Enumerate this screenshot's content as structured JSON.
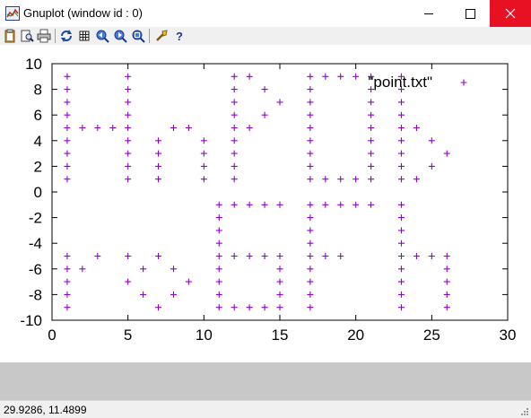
{
  "window": {
    "title": "Gnuplot (window id : 0)",
    "controls": [
      "minimize",
      "maximize",
      "close"
    ]
  },
  "toolbar": {
    "buttons": [
      "copy-clipboard-icon",
      "print-preview-icon",
      "print-icon",
      "replot-icon",
      "toggle-grid-icon",
      "zoom-previous-icon",
      "zoom-next-icon",
      "autoscale-icon",
      "options-icon",
      "help-icon"
    ]
  },
  "status": {
    "coords": "29.9286,  11.4899"
  },
  "colors": {
    "points": "#9400d3",
    "close_button": "#e81123",
    "background": "#ffffff",
    "grey_band": "#c8c8c8"
  },
  "chart_data": {
    "type": "scatter",
    "xlim": [
      0,
      30
    ],
    "ylim": [
      -10,
      10
    ],
    "xticks": [
      "0",
      "5",
      "10",
      "15",
      "20",
      "25",
      "30"
    ],
    "yticks": [
      "10",
      "8",
      "6",
      "4",
      "2",
      "0",
      "-2",
      "-4",
      "-6",
      "-8",
      "-10"
    ],
    "grid": false,
    "legend": "top-right",
    "series": [
      {
        "name": "\"point.txt\"",
        "marker": "+",
        "points": [
          [
            1,
            9
          ],
          [
            1,
            8
          ],
          [
            1,
            7
          ],
          [
            1,
            6
          ],
          [
            1,
            5
          ],
          [
            1,
            4
          ],
          [
            1,
            3
          ],
          [
            1,
            2
          ],
          [
            1,
            1
          ],
          [
            2,
            5
          ],
          [
            3,
            5
          ],
          [
            4,
            5
          ],
          [
            5,
            9
          ],
          [
            5,
            8
          ],
          [
            5,
            7
          ],
          [
            5,
            6
          ],
          [
            5,
            5
          ],
          [
            5,
            4
          ],
          [
            5,
            3
          ],
          [
            5,
            2
          ],
          [
            5,
            1
          ],
          [
            7,
            4
          ],
          [
            7,
            3
          ],
          [
            7,
            2
          ],
          [
            7,
            1
          ],
          [
            8,
            5
          ],
          [
            9,
            5
          ],
          [
            10,
            4
          ],
          [
            10,
            3
          ],
          [
            10,
            2
          ],
          [
            10,
            1
          ],
          [
            12,
            9
          ],
          [
            13,
            9
          ],
          [
            12,
            8
          ],
          [
            14,
            8
          ],
          [
            12,
            7
          ],
          [
            15,
            7
          ],
          [
            12,
            6
          ],
          [
            14,
            6
          ],
          [
            12,
            5
          ],
          [
            13,
            5
          ],
          [
            12,
            4
          ],
          [
            12,
            3
          ],
          [
            12,
            2
          ],
          [
            12,
            1
          ],
          [
            17,
            9
          ],
          [
            18,
            9
          ],
          [
            19,
            9
          ],
          [
            20,
            9
          ],
          [
            21,
            9
          ],
          [
            17,
            8
          ],
          [
            17,
            7
          ],
          [
            17,
            6
          ],
          [
            17,
            5
          ],
          [
            17,
            4
          ],
          [
            17,
            3
          ],
          [
            17,
            2
          ],
          [
            17,
            1
          ],
          [
            18,
            1
          ],
          [
            19,
            1
          ],
          [
            20,
            1
          ],
          [
            21,
            1
          ],
          [
            21,
            8
          ],
          [
            21,
            7
          ],
          [
            21,
            6
          ],
          [
            21,
            5
          ],
          [
            21,
            4
          ],
          [
            21,
            3
          ],
          [
            21,
            2
          ],
          [
            23,
            9
          ],
          [
            23,
            8
          ],
          [
            23,
            7
          ],
          [
            23,
            6
          ],
          [
            23,
            5
          ],
          [
            23,
            4
          ],
          [
            23,
            3
          ],
          [
            23,
            2
          ],
          [
            23,
            1
          ],
          [
            24,
            1
          ],
          [
            24,
            5
          ],
          [
            25,
            4
          ],
          [
            25,
            2
          ],
          [
            26,
            3
          ],
          [
            1,
            -5
          ],
          [
            1,
            -6
          ],
          [
            1,
            -7
          ],
          [
            1,
            -8
          ],
          [
            1,
            -9
          ],
          [
            2,
            -6
          ],
          [
            3,
            -5
          ],
          [
            5,
            -5
          ],
          [
            5,
            -7
          ],
          [
            6,
            -6
          ],
          [
            6,
            -8
          ],
          [
            7,
            -5
          ],
          [
            7,
            -9
          ],
          [
            8,
            -6
          ],
          [
            8,
            -8
          ],
          [
            9,
            -7
          ],
          [
            11,
            -1
          ],
          [
            12,
            -1
          ],
          [
            13,
            -1
          ],
          [
            14,
            -1
          ],
          [
            15,
            -1
          ],
          [
            11,
            -2
          ],
          [
            11,
            -3
          ],
          [
            11,
            -4
          ],
          [
            11,
            -5
          ],
          [
            11,
            -6
          ],
          [
            11,
            -7
          ],
          [
            11,
            -8
          ],
          [
            11,
            -9
          ],
          [
            12,
            -5
          ],
          [
            13,
            -5
          ],
          [
            14,
            -5
          ],
          [
            15,
            -5
          ],
          [
            15,
            -6
          ],
          [
            15,
            -7
          ],
          [
            15,
            -8
          ],
          [
            15,
            -9
          ],
          [
            12,
            -9
          ],
          [
            13,
            -9
          ],
          [
            14,
            -9
          ],
          [
            17,
            -1
          ],
          [
            18,
            -1
          ],
          [
            19,
            -1
          ],
          [
            20,
            -1
          ],
          [
            21,
            -1
          ],
          [
            17,
            -2
          ],
          [
            17,
            -3
          ],
          [
            17,
            -4
          ],
          [
            17,
            -5
          ],
          [
            17,
            -6
          ],
          [
            17,
            -7
          ],
          [
            17,
            -8
          ],
          [
            17,
            -9
          ],
          [
            18,
            -5
          ],
          [
            19,
            -5
          ],
          [
            23,
            -1
          ],
          [
            23,
            -2
          ],
          [
            23,
            -3
          ],
          [
            23,
            -4
          ],
          [
            23,
            -5
          ],
          [
            23,
            -6
          ],
          [
            23,
            -7
          ],
          [
            23,
            -8
          ],
          [
            23,
            -9
          ],
          [
            24,
            -5
          ],
          [
            25,
            -5
          ],
          [
            26,
            -5
          ],
          [
            26,
            -6
          ],
          [
            26,
            -7
          ],
          [
            26,
            -8
          ],
          [
            26,
            -9
          ]
        ]
      }
    ]
  }
}
